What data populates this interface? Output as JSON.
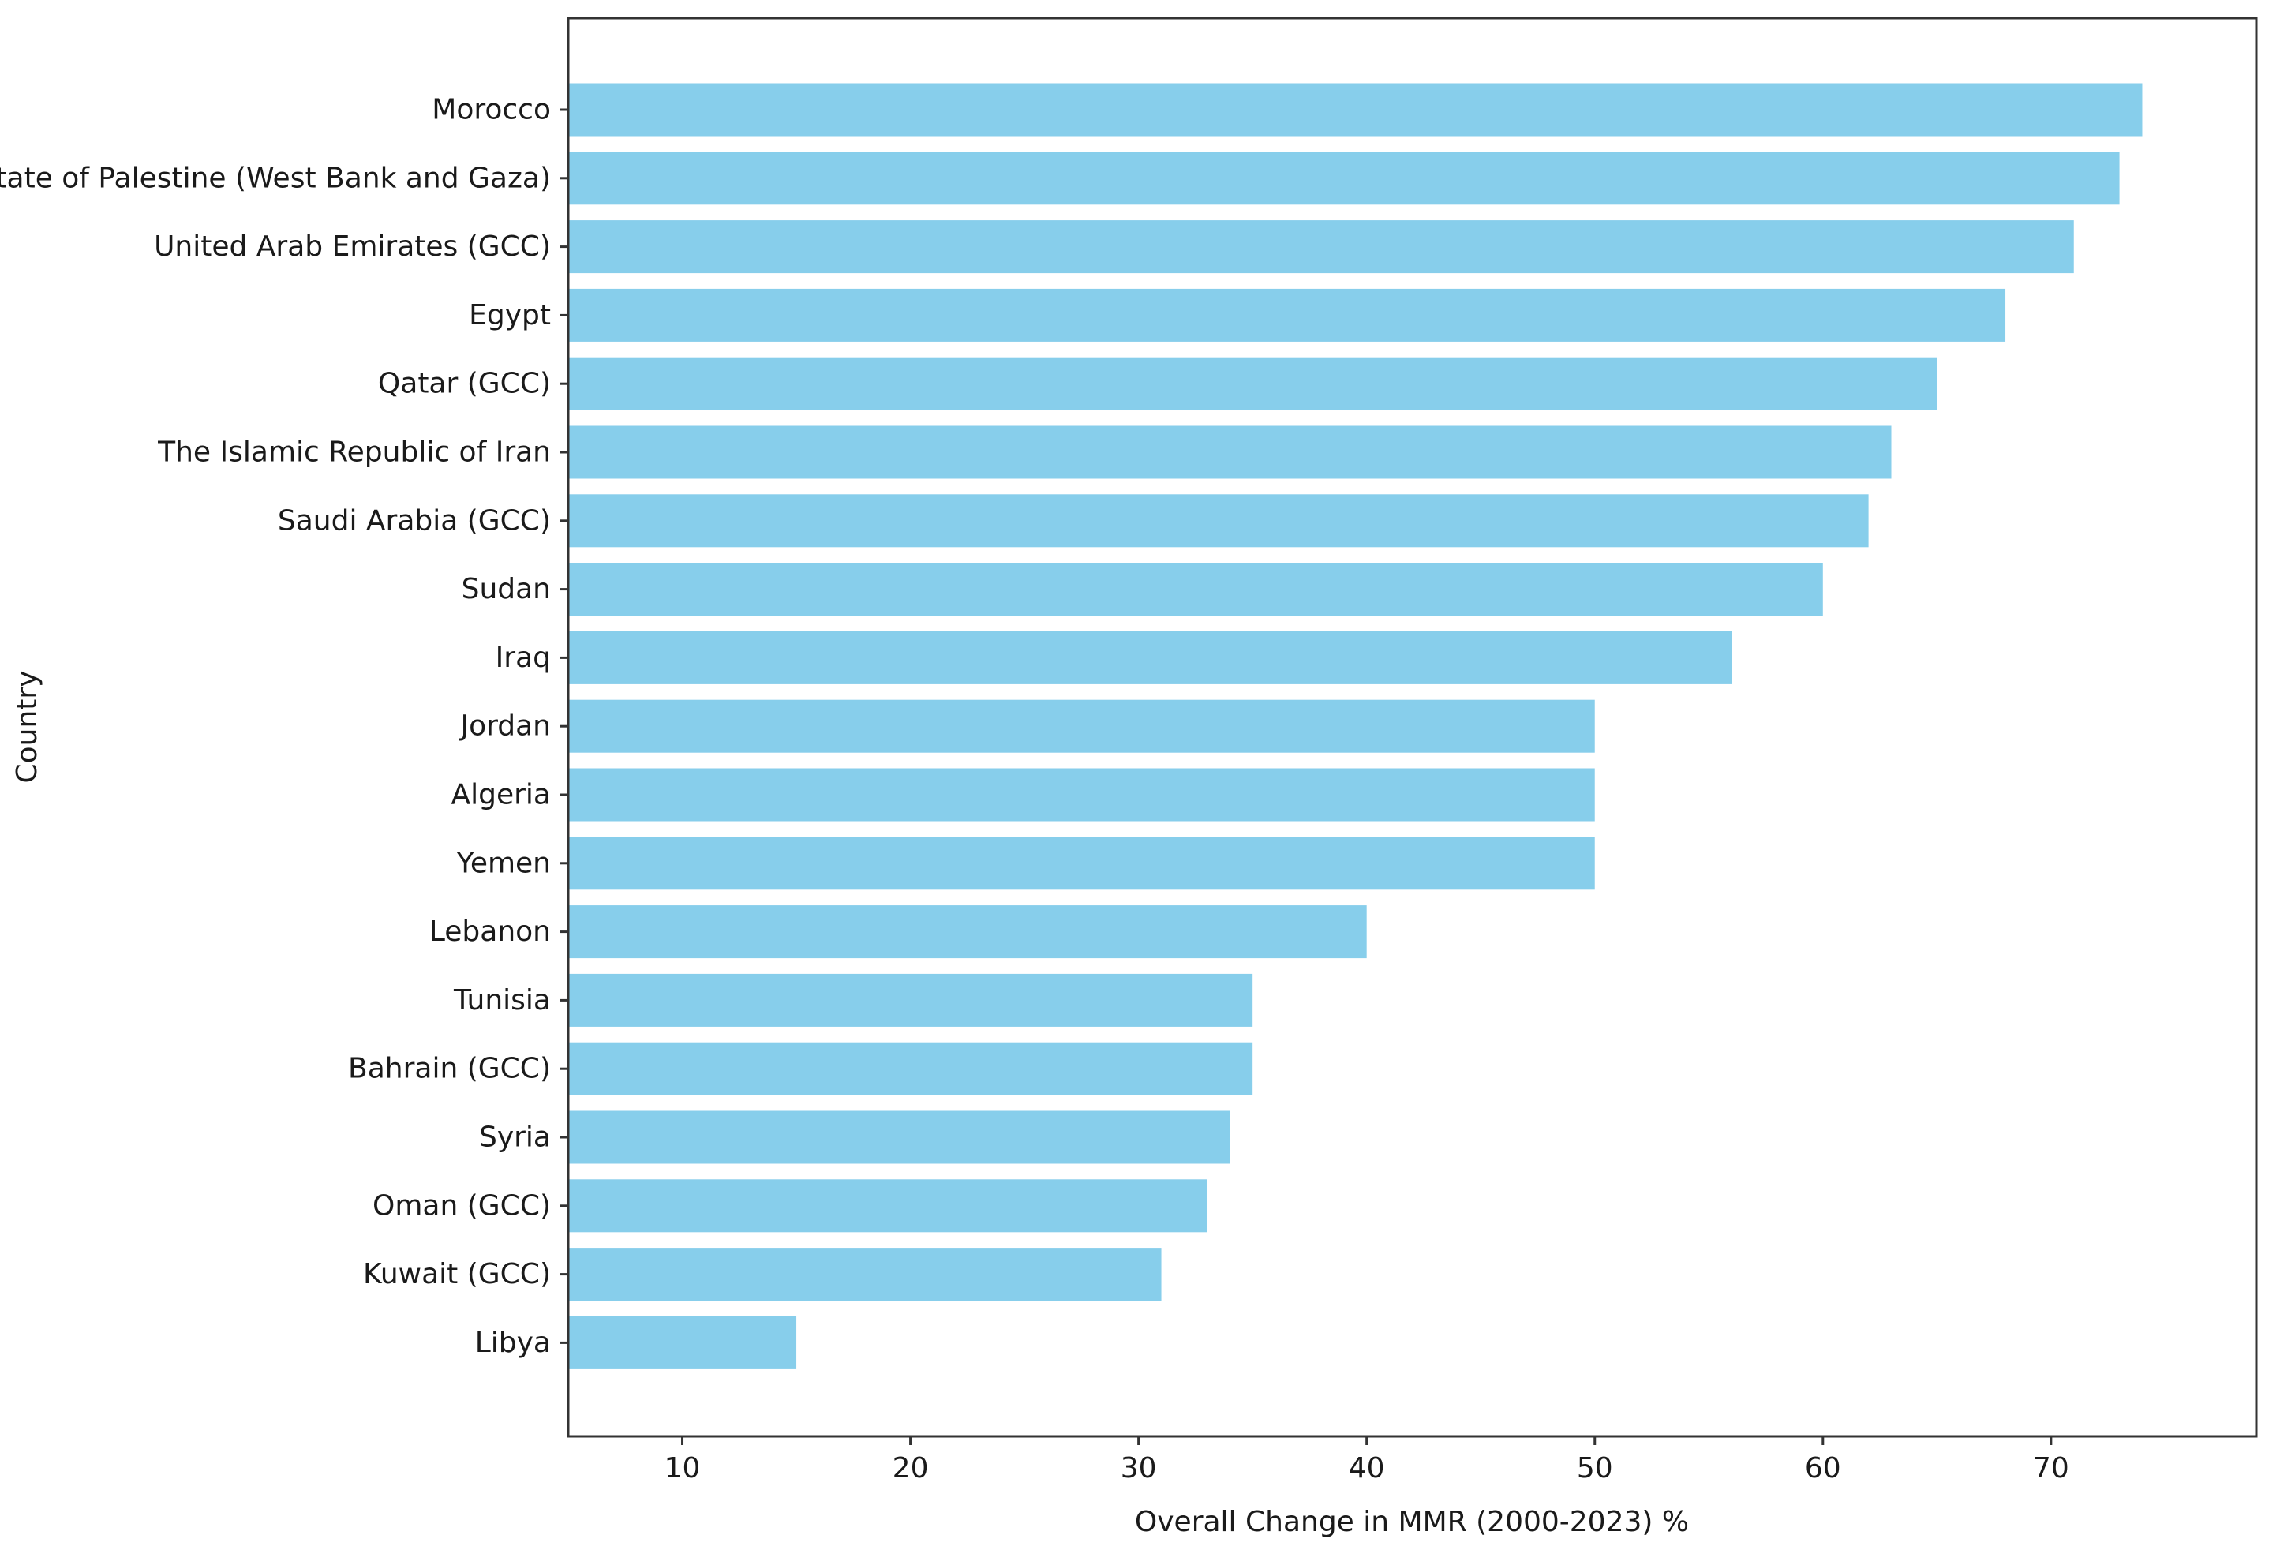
{
  "chart_data": {
    "type": "bar",
    "orientation": "horizontal",
    "title": "",
    "xlabel": "Overall Change in MMR (2000-2023) %",
    "ylabel": "Country",
    "categories": [
      "Morocco",
      "State of Palestine (West Bank and Gaza)",
      "United Arab Emirates (GCC)",
      "Egypt",
      "Qatar (GCC)",
      "The Islamic Republic of Iran",
      "Saudi Arabia (GCC)",
      "Sudan",
      "Iraq",
      "Jordan",
      "Algeria",
      "Yemen",
      "Lebanon",
      "Tunisia",
      "Bahrain (GCC)",
      "Syria",
      "Oman (GCC)",
      "Kuwait (GCC)",
      "Libya"
    ],
    "values": [
      74,
      73,
      71,
      68,
      65,
      63,
      62,
      60,
      56,
      50,
      50,
      50,
      40,
      35,
      35,
      34,
      33,
      31,
      15
    ],
    "xlim": [
      5,
      79
    ],
    "xticks": [
      10,
      20,
      30,
      40,
      50,
      60,
      70
    ],
    "grid": false,
    "legend": "none",
    "bar_color": "#87ceeb",
    "axis_color": "#333333",
    "text_color": "#1a1a1a"
  }
}
